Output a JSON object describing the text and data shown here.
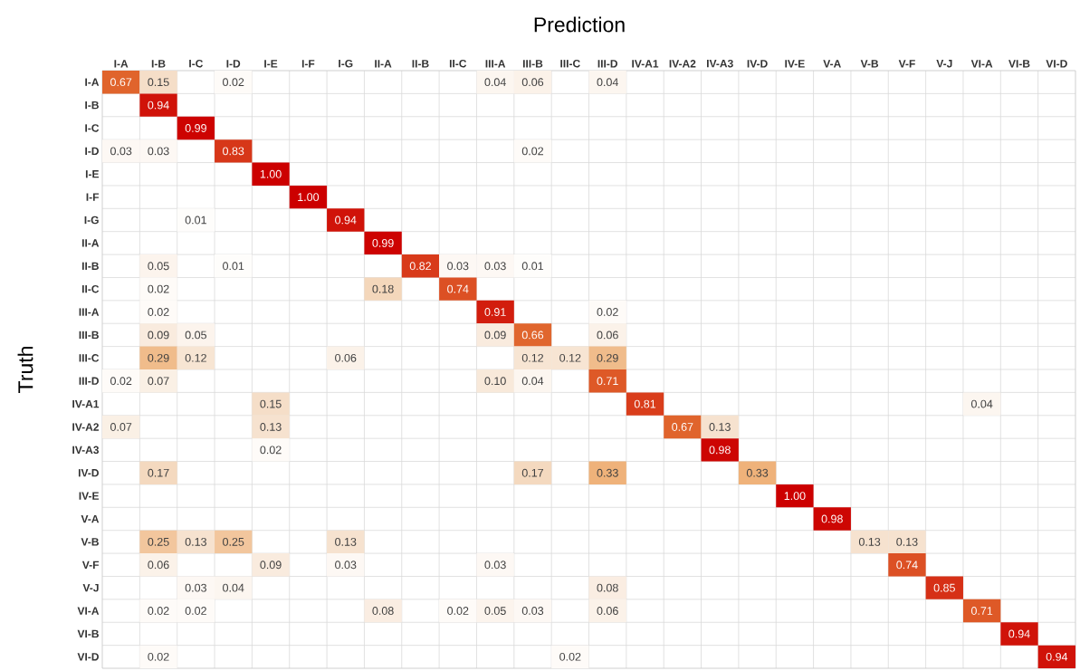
{
  "chart_data": {
    "type": "heatmap",
    "xlabel": "Prediction",
    "ylabel": "Truth",
    "grid": true,
    "categories": [
      "I-A",
      "I-B",
      "I-C",
      "I-D",
      "I-E",
      "I-F",
      "I-G",
      "II-A",
      "II-B",
      "II-C",
      "III-A",
      "III-B",
      "III-C",
      "III-D",
      "IV-A1",
      "IV-A2",
      "IV-A3",
      "IV-D",
      "IV-E",
      "V-A",
      "V-B",
      "V-F",
      "V-J",
      "VI-A",
      "VI-B",
      "VI-D"
    ],
    "y_categories": [
      "I-A",
      "I-B",
      "I-C",
      "I-D",
      "I-E",
      "I-F",
      "I-G",
      "II-A",
      "II-B",
      "II-C",
      "III-A",
      "III-B",
      "III-C",
      "III-D",
      "IV-A1",
      "IV-A2",
      "IV-A3",
      "IV-D",
      "IV-E",
      "V-A",
      "V-B",
      "V-F",
      "V-J",
      "VI-A",
      "VI-B",
      "VI-D"
    ],
    "cells": [
      [
        0.67,
        0.15,
        null,
        0.02,
        null,
        null,
        null,
        null,
        null,
        null,
        0.04,
        0.06,
        null,
        0.04,
        null,
        null,
        null,
        null,
        null,
        null,
        null,
        null,
        null,
        null,
        null,
        null
      ],
      [
        null,
        0.94,
        null,
        null,
        null,
        null,
        null,
        null,
        null,
        null,
        null,
        null,
        null,
        null,
        null,
        null,
        null,
        null,
        null,
        null,
        null,
        null,
        null,
        null,
        null,
        null
      ],
      [
        null,
        null,
        0.99,
        null,
        null,
        null,
        null,
        null,
        null,
        null,
        null,
        null,
        null,
        null,
        null,
        null,
        null,
        null,
        null,
        null,
        null,
        null,
        null,
        null,
        null,
        null
      ],
      [
        0.03,
        0.03,
        null,
        0.83,
        null,
        null,
        null,
        null,
        null,
        null,
        null,
        0.02,
        null,
        null,
        null,
        null,
        null,
        null,
        null,
        null,
        null,
        null,
        null,
        null,
        null,
        null
      ],
      [
        null,
        null,
        null,
        null,
        1.0,
        null,
        null,
        null,
        null,
        null,
        null,
        null,
        null,
        null,
        null,
        null,
        null,
        null,
        null,
        null,
        null,
        null,
        null,
        null,
        null,
        null
      ],
      [
        null,
        null,
        null,
        null,
        null,
        1.0,
        null,
        null,
        null,
        null,
        null,
        null,
        null,
        null,
        null,
        null,
        null,
        null,
        null,
        null,
        null,
        null,
        null,
        null,
        null,
        null
      ],
      [
        null,
        null,
        0.01,
        null,
        null,
        null,
        0.94,
        null,
        null,
        null,
        null,
        null,
        null,
        null,
        null,
        null,
        null,
        null,
        null,
        null,
        null,
        null,
        null,
        null,
        null,
        null
      ],
      [
        null,
        null,
        null,
        null,
        null,
        null,
        null,
        0.99,
        null,
        null,
        null,
        null,
        null,
        null,
        null,
        null,
        null,
        null,
        null,
        null,
        null,
        null,
        null,
        null,
        null,
        null
      ],
      [
        null,
        0.05,
        null,
        0.01,
        null,
        null,
        null,
        null,
        0.82,
        0.03,
        0.03,
        0.01,
        null,
        null,
        null,
        null,
        null,
        null,
        null,
        null,
        null,
        null,
        null,
        null,
        null,
        null
      ],
      [
        null,
        0.02,
        null,
        null,
        null,
        null,
        null,
        0.18,
        null,
        0.74,
        null,
        null,
        null,
        null,
        null,
        null,
        null,
        null,
        null,
        null,
        null,
        null,
        null,
        null,
        null,
        null
      ],
      [
        null,
        0.02,
        null,
        null,
        null,
        null,
        null,
        null,
        null,
        null,
        0.91,
        null,
        null,
        0.02,
        null,
        null,
        null,
        null,
        null,
        null,
        null,
        null,
        null,
        null,
        null,
        null
      ],
      [
        null,
        0.09,
        0.05,
        null,
        null,
        null,
        null,
        null,
        null,
        null,
        0.09,
        0.66,
        null,
        0.06,
        null,
        null,
        null,
        null,
        null,
        null,
        null,
        null,
        null,
        null,
        null,
        null
      ],
      [
        null,
        0.29,
        0.12,
        null,
        null,
        null,
        0.06,
        null,
        null,
        null,
        null,
        0.12,
        0.12,
        0.29,
        null,
        null,
        null,
        null,
        null,
        null,
        null,
        null,
        null,
        null,
        null,
        null
      ],
      [
        0.02,
        0.07,
        null,
        null,
        null,
        null,
        null,
        null,
        null,
        null,
        0.1,
        0.04,
        null,
        0.71,
        null,
        null,
        null,
        null,
        null,
        null,
        null,
        null,
        null,
        null,
        null,
        null
      ],
      [
        null,
        null,
        null,
        null,
        0.15,
        null,
        null,
        null,
        null,
        null,
        null,
        null,
        null,
        null,
        0.81,
        null,
        null,
        null,
        null,
        null,
        null,
        null,
        null,
        0.04,
        null,
        null
      ],
      [
        0.07,
        null,
        null,
        null,
        0.13,
        null,
        null,
        null,
        null,
        null,
        null,
        null,
        null,
        null,
        null,
        0.67,
        0.13,
        null,
        null,
        null,
        null,
        null,
        null,
        null,
        null,
        null
      ],
      [
        null,
        null,
        null,
        null,
        0.02,
        null,
        null,
        null,
        null,
        null,
        null,
        null,
        null,
        null,
        null,
        null,
        0.98,
        null,
        null,
        null,
        null,
        null,
        null,
        null,
        null,
        null
      ],
      [
        null,
        0.17,
        null,
        null,
        null,
        null,
        null,
        null,
        null,
        null,
        null,
        0.17,
        null,
        0.33,
        null,
        null,
        null,
        0.33,
        null,
        null,
        null,
        null,
        null,
        null,
        null,
        null
      ],
      [
        null,
        null,
        null,
        null,
        null,
        null,
        null,
        null,
        null,
        null,
        null,
        null,
        null,
        null,
        null,
        null,
        null,
        null,
        1.0,
        null,
        null,
        null,
        null,
        null,
        null,
        null
      ],
      [
        null,
        null,
        null,
        null,
        null,
        null,
        null,
        null,
        null,
        null,
        null,
        null,
        null,
        null,
        null,
        null,
        null,
        null,
        null,
        0.98,
        null,
        null,
        null,
        null,
        null,
        null
      ],
      [
        null,
        0.25,
        0.13,
        0.25,
        null,
        null,
        0.13,
        null,
        null,
        null,
        null,
        null,
        null,
        null,
        null,
        null,
        null,
        null,
        null,
        null,
        0.13,
        0.13,
        null,
        null,
        null,
        null
      ],
      [
        null,
        0.06,
        null,
        null,
        0.09,
        null,
        0.03,
        null,
        null,
        null,
        0.03,
        null,
        null,
        null,
        null,
        null,
        null,
        null,
        null,
        null,
        null,
        0.74,
        null,
        null,
        null,
        null
      ],
      [
        null,
        null,
        0.03,
        0.04,
        null,
        null,
        null,
        null,
        null,
        null,
        null,
        null,
        null,
        0.08,
        null,
        null,
        null,
        null,
        null,
        null,
        null,
        null,
        0.85,
        null,
        null,
        null
      ],
      [
        null,
        0.02,
        0.02,
        null,
        null,
        null,
        null,
        0.08,
        null,
        0.02,
        0.05,
        0.03,
        null,
        0.06,
        null,
        null,
        null,
        null,
        null,
        null,
        null,
        null,
        null,
        0.71,
        null,
        null
      ],
      [
        null,
        null,
        null,
        null,
        null,
        null,
        null,
        null,
        null,
        null,
        null,
        null,
        null,
        null,
        null,
        null,
        null,
        null,
        null,
        null,
        null,
        null,
        null,
        null,
        0.94,
        null
      ],
      [
        null,
        0.02,
        null,
        null,
        null,
        null,
        null,
        null,
        null,
        null,
        null,
        null,
        0.02,
        null,
        null,
        null,
        null,
        null,
        null,
        null,
        null,
        null,
        null,
        null,
        null,
        0.94
      ]
    ],
    "cell_labels": [
      [
        "0.67",
        "0.15",
        null,
        "0.02",
        null,
        null,
        null,
        null,
        null,
        null,
        "0.04",
        "0.06",
        null,
        "0.04",
        null,
        null,
        null,
        null,
        null,
        null,
        null,
        null,
        null,
        null,
        null,
        null
      ],
      [
        null,
        "0.94",
        null,
        null,
        null,
        null,
        null,
        null,
        null,
        null,
        null,
        null,
        null,
        null,
        null,
        null,
        null,
        null,
        null,
        null,
        null,
        null,
        null,
        null,
        null,
        null
      ],
      [
        null,
        null,
        "0.99",
        null,
        null,
        null,
        null,
        null,
        null,
        null,
        null,
        null,
        null,
        null,
        null,
        null,
        null,
        null,
        null,
        null,
        null,
        null,
        null,
        null,
        null,
        null
      ],
      [
        "0.03",
        "0.03",
        null,
        "0.83",
        null,
        null,
        null,
        null,
        null,
        null,
        null,
        "0.02",
        null,
        null,
        null,
        null,
        null,
        null,
        null,
        null,
        null,
        null,
        null,
        null,
        null,
        null
      ],
      [
        null,
        null,
        null,
        null,
        "1.00",
        null,
        null,
        null,
        null,
        null,
        null,
        null,
        null,
        null,
        null,
        null,
        null,
        null,
        null,
        null,
        null,
        null,
        null,
        null,
        null,
        null
      ],
      [
        null,
        null,
        null,
        null,
        null,
        "1.00",
        null,
        null,
        null,
        null,
        null,
        null,
        null,
        null,
        null,
        null,
        null,
        null,
        null,
        null,
        null,
        null,
        null,
        null,
        null,
        null
      ],
      [
        null,
        null,
        "0.01",
        null,
        null,
        null,
        "0.94",
        null,
        null,
        null,
        null,
        null,
        null,
        null,
        null,
        null,
        null,
        null,
        null,
        null,
        null,
        null,
        null,
        null,
        null,
        null
      ],
      [
        null,
        null,
        null,
        null,
        null,
        null,
        null,
        "0.99",
        null,
        null,
        null,
        null,
        null,
        null,
        null,
        null,
        null,
        null,
        null,
        null,
        null,
        null,
        null,
        null,
        null,
        null
      ],
      [
        null,
        "0.05",
        null,
        "0.01",
        null,
        null,
        null,
        null,
        "0.82",
        "0.03",
        "0.03",
        "0.01",
        null,
        null,
        null,
        null,
        null,
        null,
        null,
        null,
        null,
        null,
        null,
        null,
        null,
        null
      ],
      [
        null,
        "0.02",
        null,
        null,
        null,
        null,
        null,
        "0.18",
        null,
        "0.74",
        null,
        null,
        null,
        null,
        null,
        null,
        null,
        null,
        null,
        null,
        null,
        null,
        null,
        null,
        null,
        null
      ],
      [
        null,
        "0.02",
        null,
        null,
        null,
        null,
        null,
        null,
        null,
        null,
        "0.91",
        null,
        null,
        "0.02",
        null,
        null,
        null,
        null,
        null,
        null,
        null,
        null,
        null,
        null,
        null,
        null
      ],
      [
        null,
        "0.09",
        "0.05",
        null,
        null,
        null,
        null,
        null,
        null,
        null,
        "0.09",
        "0.66",
        null,
        "0.06",
        null,
        null,
        null,
        null,
        null,
        null,
        null,
        null,
        null,
        null,
        null,
        null
      ],
      [
        null,
        "0.29",
        "0.12",
        null,
        null,
        null,
        "0.06",
        null,
        null,
        null,
        null,
        "0.12",
        "0.12",
        "0.29",
        null,
        null,
        null,
        null,
        null,
        null,
        null,
        null,
        null,
        null,
        null,
        null
      ],
      [
        "0.02",
        "0.07",
        null,
        null,
        null,
        null,
        null,
        null,
        null,
        null,
        "0.10",
        "0.04",
        null,
        "0.71",
        null,
        null,
        null,
        null,
        null,
        null,
        null,
        null,
        null,
        null,
        null,
        null
      ],
      [
        null,
        null,
        null,
        null,
        "0.15",
        null,
        null,
        null,
        null,
        null,
        null,
        null,
        null,
        null,
        "0.81",
        null,
        null,
        null,
        null,
        null,
        null,
        null,
        null,
        "0.04",
        null,
        null
      ],
      [
        "0.07",
        null,
        null,
        null,
        "0.13",
        null,
        null,
        null,
        null,
        null,
        null,
        null,
        null,
        null,
        null,
        "0.67",
        "0.13",
        null,
        null,
        null,
        null,
        null,
        null,
        null,
        null,
        null
      ],
      [
        null,
        null,
        null,
        null,
        "0.02",
        null,
        null,
        null,
        null,
        null,
        null,
        null,
        null,
        null,
        null,
        null,
        "0.98",
        null,
        null,
        null,
        null,
        null,
        null,
        null,
        null,
        null
      ],
      [
        null,
        "0.17",
        null,
        null,
        null,
        null,
        null,
        null,
        null,
        null,
        null,
        "0.17",
        null,
        "0.33",
        null,
        null,
        null,
        "0.33",
        null,
        null,
        null,
        null,
        null,
        null,
        null,
        null
      ],
      [
        null,
        null,
        null,
        null,
        null,
        null,
        null,
        null,
        null,
        null,
        null,
        null,
        null,
        null,
        null,
        null,
        null,
        null,
        "1.00",
        null,
        null,
        null,
        null,
        null,
        null,
        null
      ],
      [
        null,
        null,
        null,
        null,
        null,
        null,
        null,
        null,
        null,
        null,
        null,
        null,
        null,
        null,
        null,
        null,
        null,
        null,
        null,
        "0.98",
        null,
        null,
        null,
        null,
        null,
        null
      ],
      [
        null,
        "0.25",
        "0.13",
        "0.25",
        null,
        null,
        "0.13",
        null,
        null,
        null,
        null,
        null,
        null,
        null,
        null,
        null,
        null,
        null,
        null,
        null,
        "0.13",
        "0.13",
        null,
        null,
        null,
        null
      ],
      [
        null,
        "0.06",
        null,
        null,
        "0.09",
        null,
        "0.03",
        null,
        null,
        null,
        "0.03",
        null,
        null,
        null,
        null,
        null,
        null,
        null,
        null,
        null,
        null,
        "0.74",
        null,
        null,
        null,
        null
      ],
      [
        null,
        null,
        "0.03",
        "0.04",
        null,
        null,
        null,
        null,
        null,
        null,
        null,
        null,
        null,
        "0.08",
        null,
        null,
        null,
        null,
        null,
        null,
        null,
        null,
        "0.85",
        null,
        null,
        null
      ],
      [
        null,
        "0.02",
        "0.02",
        null,
        null,
        null,
        null,
        "0.08",
        null,
        "0.02",
        "0.05",
        "0.03",
        null,
        "0.06",
        null,
        null,
        null,
        null,
        null,
        null,
        null,
        null,
        null,
        "0.71",
        null,
        null
      ],
      [
        null,
        null,
        null,
        null,
        null,
        null,
        null,
        null,
        null,
        null,
        null,
        null,
        null,
        null,
        null,
        null,
        null,
        null,
        null,
        null,
        null,
        null,
        null,
        null,
        "0.94",
        null
      ],
      [
        null,
        "0.02",
        null,
        null,
        null,
        null,
        null,
        null,
        null,
        null,
        null,
        null,
        "0.02",
        null,
        null,
        null,
        null,
        null,
        null,
        null,
        null,
        null,
        null,
        null,
        null,
        "0.94"
      ]
    ]
  }
}
